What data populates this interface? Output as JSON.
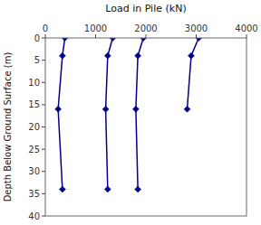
{
  "chart_data": {
    "type": "line",
    "xlabel": "Load in Pile (kN)",
    "ylabel": "Depth Below Ground Surface (m)",
    "xlim": [
      0,
      4000
    ],
    "ylim": [
      40,
      0
    ],
    "xticks": [
      0,
      1000,
      2000,
      3000,
      4000
    ],
    "yticks": [
      0,
      5,
      10,
      15,
      20,
      25,
      30,
      35,
      40
    ],
    "color": "#00008B",
    "marker": "diamond",
    "series": [
      {
        "x": [
          390,
          340,
          255,
          340
        ],
        "values": [
          0,
          4,
          16,
          34
        ]
      },
      {
        "x": [
          1340,
          1240,
          1200,
          1240
        ],
        "values": [
          0,
          4,
          16,
          34
        ]
      },
      {
        "x": [
          1950,
          1840,
          1800,
          1840
        ],
        "values": [
          0,
          4,
          16,
          34
        ]
      },
      {
        "x": [
          3050,
          2900,
          2820
        ],
        "values": [
          0,
          4,
          16
        ]
      }
    ]
  }
}
